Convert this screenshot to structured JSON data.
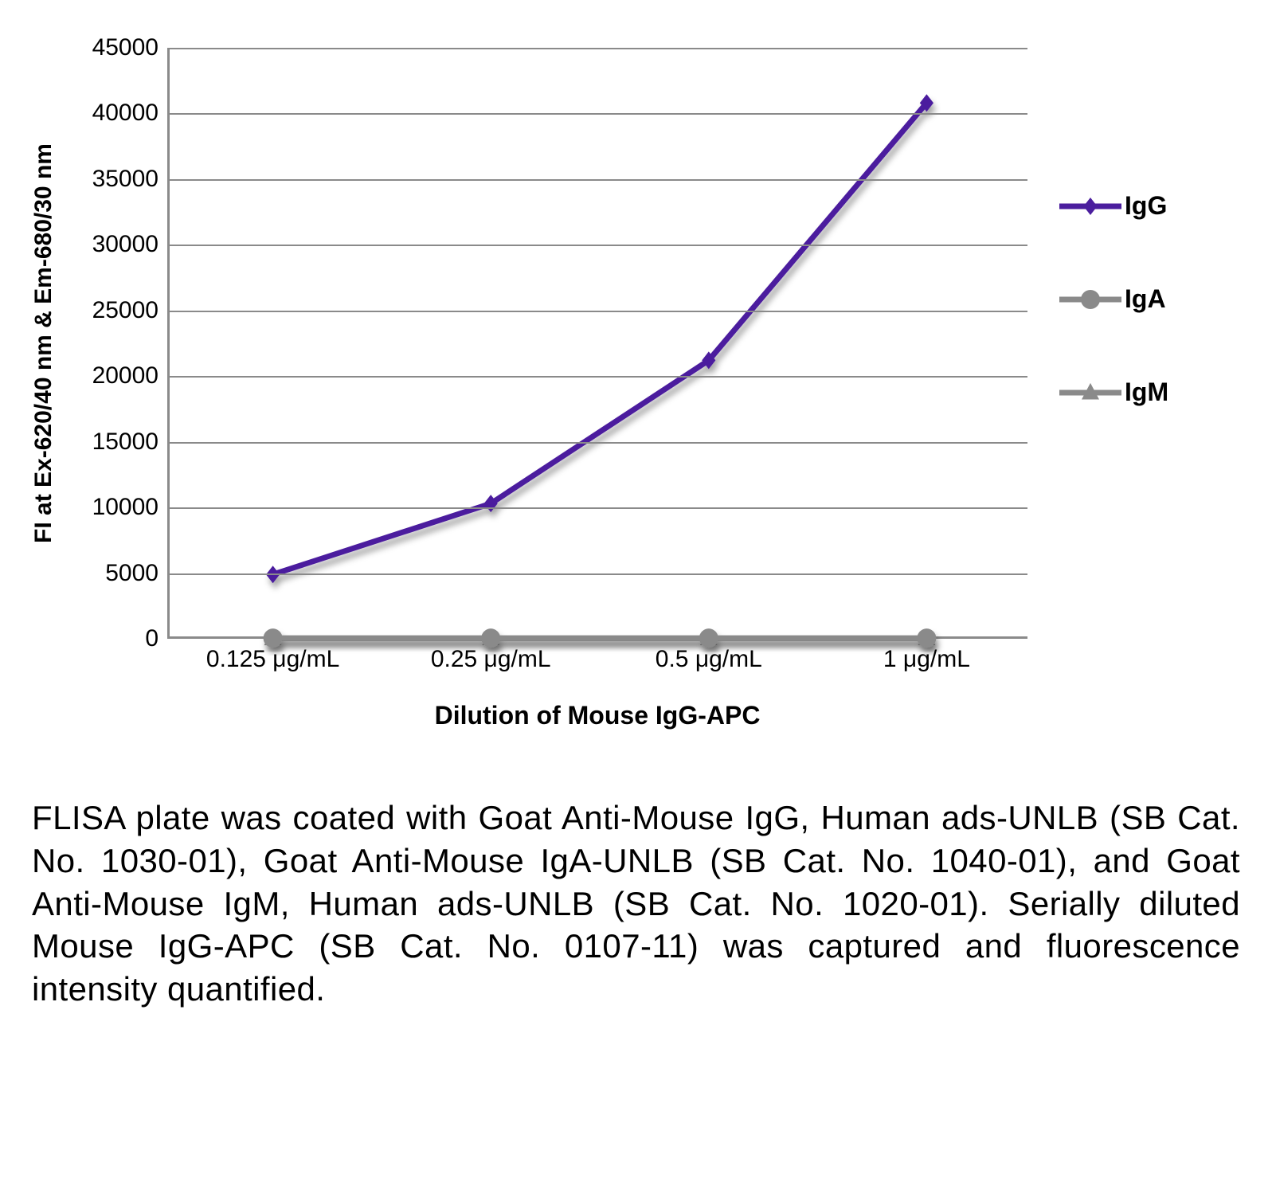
{
  "chart": {
    "type": "line",
    "background_color": "#ffffff",
    "grid_color": "#8a8a8a",
    "axis_color": "#8a8a8a",
    "y_axis": {
      "title": "FI at Ex-620/40 nm & Em-680/30 nm",
      "min": 0,
      "max": 45000,
      "tick_step": 5000,
      "ticks": [
        0,
        5000,
        10000,
        15000,
        20000,
        25000,
        30000,
        35000,
        40000,
        45000
      ],
      "label_fontsize": 30,
      "title_fontsize": 30,
      "title_fontweight": 700
    },
    "x_axis": {
      "title": "Dilution of Mouse IgG-APC",
      "categories": [
        "0.125 μg/mL",
        "0.25 μg/mL",
        "0.5 μg/mL",
        "1 μg/mL"
      ],
      "label_fontsize": 30,
      "title_fontsize": 32,
      "title_fontweight": 700
    },
    "series": [
      {
        "name": "IgG",
        "values": [
          4900,
          10300,
          21200,
          40800
        ],
        "color": "#4b1e9e",
        "line_width": 7,
        "marker": "diamond",
        "marker_size": 22,
        "shadow": true
      },
      {
        "name": "IgA",
        "values": [
          50,
          50,
          50,
          50
        ],
        "color": "#8a8a8a",
        "line_width": 7,
        "marker": "circle",
        "marker_size": 24,
        "shadow": true
      },
      {
        "name": "IgM",
        "values": [
          20,
          20,
          20,
          20
        ],
        "color": "#8a8a8a",
        "line_width": 7,
        "marker": "triangle",
        "marker_size": 22,
        "shadow": true
      }
    ],
    "legend": {
      "position": "right",
      "fontsize": 32,
      "fontweight": 700
    }
  },
  "caption": "FLISA plate was coated with Goat Anti-Mouse IgG, Human ads-UNLB (SB Cat. No. 1030-01), Goat Anti-Mouse IgA-UNLB (SB Cat. No. 1040-01), and Goat Anti-Mouse IgM, Human ads-UNLB (SB Cat. No. 1020-01).  Serially diluted Mouse IgG-APC (SB Cat. No. 0107-11) was captured and fluorescence intensity quantified."
}
